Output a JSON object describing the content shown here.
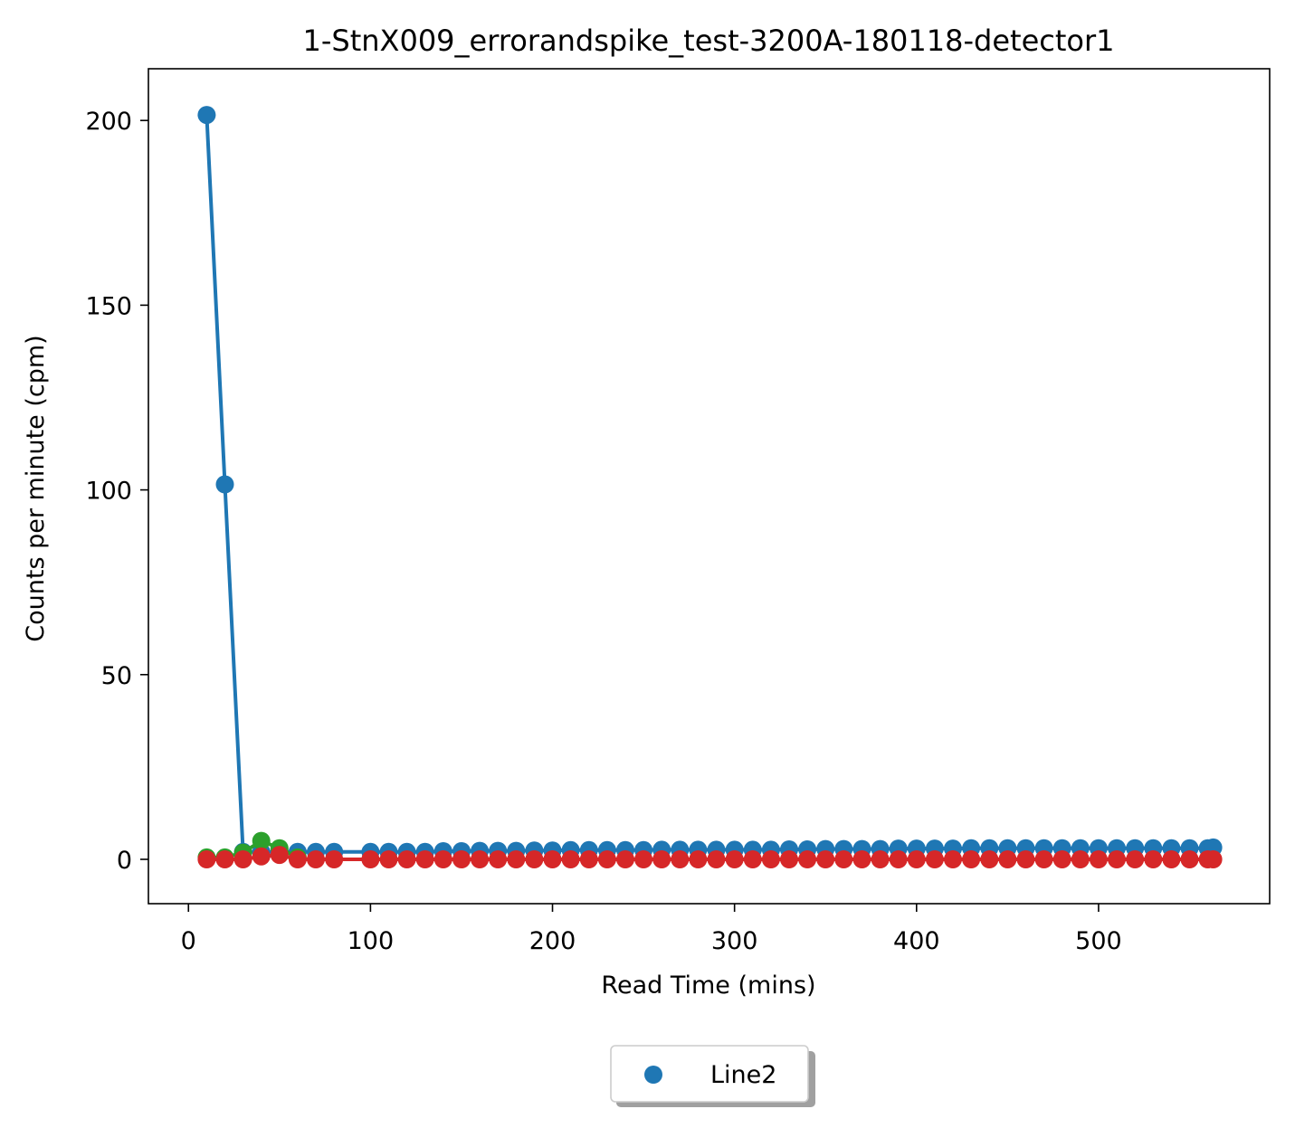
{
  "chart_data": {
    "type": "scatter",
    "title": "1-StnX009_errorandspike_test-3200A-180118-detector1",
    "xlabel": "Read Time (mins)",
    "ylabel": "Counts per minute (cpm)",
    "xlim": [
      -22,
      594
    ],
    "ylim": [
      -12,
      214
    ],
    "xticks": [
      0,
      100,
      200,
      300,
      400,
      500
    ],
    "yticks": [
      0,
      50,
      100,
      150,
      200
    ],
    "grid": false,
    "legend": {
      "placement": "bottom-center",
      "entries": [
        "Line2"
      ]
    },
    "series": [
      {
        "name": "Line2",
        "color": "#1f77b4",
        "x": [
          10,
          20,
          30,
          40,
          50,
          60,
          70,
          80,
          100,
          110,
          120,
          130,
          140,
          150,
          160,
          170,
          180,
          190,
          200,
          210,
          220,
          230,
          240,
          250,
          260,
          270,
          280,
          290,
          300,
          310,
          320,
          330,
          340,
          350,
          360,
          370,
          380,
          390,
          400,
          410,
          420,
          430,
          440,
          450,
          460,
          470,
          480,
          490,
          500,
          510,
          520,
          530,
          540,
          550,
          560,
          563
        ],
        "y": [
          201.5,
          101.5,
          2,
          2,
          2,
          2,
          2,
          2,
          2,
          2,
          2,
          2,
          2.2,
          2.2,
          2.3,
          2.3,
          2.3,
          2.4,
          2.4,
          2.5,
          2.5,
          2.5,
          2.5,
          2.5,
          2.6,
          2.6,
          2.6,
          2.6,
          2.6,
          2.6,
          2.6,
          2.7,
          2.7,
          2.8,
          2.8,
          2.8,
          2.8,
          2.9,
          2.9,
          2.9,
          2.9,
          3,
          3,
          3,
          3,
          3,
          3,
          3,
          3,
          3,
          3,
          3,
          3,
          3,
          3,
          3.2
        ]
      },
      {
        "color": "#2ca02c",
        "x": [
          10,
          20,
          30,
          40,
          50,
          60
        ],
        "y": [
          0.5,
          0.5,
          1.8,
          5,
          3,
          0.5
        ]
      },
      {
        "color": "#d62728",
        "x": [
          10,
          20,
          30,
          40,
          50,
          60,
          70,
          80,
          100,
          110,
          120,
          130,
          140,
          150,
          160,
          170,
          180,
          190,
          200,
          210,
          220,
          230,
          240,
          250,
          260,
          270,
          280,
          290,
          300,
          310,
          320,
          330,
          340,
          350,
          360,
          370,
          380,
          390,
          400,
          410,
          420,
          430,
          440,
          450,
          460,
          470,
          480,
          490,
          500,
          510,
          520,
          530,
          540,
          550,
          560,
          563
        ],
        "y": [
          0,
          0,
          0,
          0.8,
          1.2,
          0,
          0,
          0,
          0,
          0,
          0,
          0,
          0,
          0,
          0,
          0,
          0,
          0,
          0,
          0,
          0,
          0,
          0,
          0,
          0,
          0,
          0,
          0,
          0,
          0,
          0,
          0,
          0,
          0,
          0,
          0,
          0,
          0,
          0,
          0,
          0,
          0,
          0,
          0,
          0,
          0,
          0,
          0,
          0,
          0,
          0,
          0,
          0,
          0,
          0,
          0
        ]
      }
    ]
  }
}
